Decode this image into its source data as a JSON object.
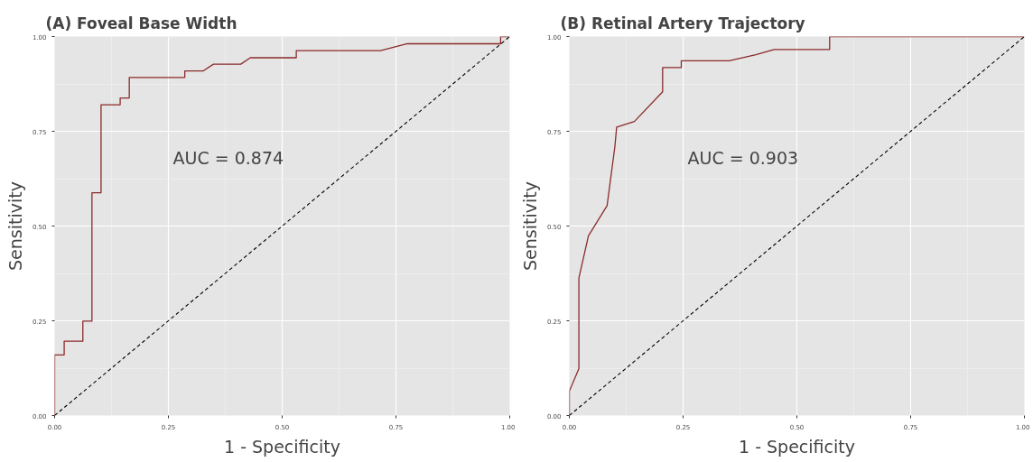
{
  "chart_data": [
    {
      "type": "line",
      "title": "(A)  Foveal Base Width",
      "xlabel": "1 - Specificity",
      "ylabel": "Sensitivity",
      "xlim": [
        0,
        1
      ],
      "ylim": [
        0,
        1
      ],
      "xticks": [
        {
          "value": 0,
          "label": "0.00"
        },
        {
          "value": 0.25,
          "label": "0.25"
        },
        {
          "value": 0.5,
          "label": "0.50"
        },
        {
          "value": 0.75,
          "label": "0.75"
        },
        {
          "value": 1,
          "label": "1.00"
        }
      ],
      "yticks": [
        {
          "value": 0,
          "label": "0.00"
        },
        {
          "value": 0.25,
          "label": "0.25"
        },
        {
          "value": 0.5,
          "label": "0.50"
        },
        {
          "value": 0.75,
          "label": "0.75"
        },
        {
          "value": 1,
          "label": "1.00"
        }
      ],
      "grid": true,
      "annotations": [
        "AUC = 0.874"
      ],
      "series": [
        {
          "color": "#8b2a2a",
          "line_style": "solid",
          "x": [
            0,
            0,
            0.021,
            0.021,
            0.062,
            0.062,
            0.082,
            0.082,
            0.102,
            0.102,
            0.144,
            0.144,
            0.164,
            0.164,
            0.286,
            0.286,
            0.326,
            0.349,
            0.409,
            0.43,
            0.531,
            0.531,
            0.716,
            0.775,
            0.98,
            0.98,
            1.0
          ],
          "values": [
            0,
            0.16,
            0.16,
            0.196,
            0.196,
            0.249,
            0.249,
            0.588,
            0.588,
            0.82,
            0.82,
            0.838,
            0.838,
            0.892,
            0.892,
            0.909,
            0.909,
            0.927,
            0.927,
            0.944,
            0.944,
            0.963,
            0.963,
            0.981,
            0.981,
            1.0,
            1.0
          ]
        },
        {
          "color": "#000000",
          "line_style": "dashed",
          "x": [
            0,
            1
          ],
          "values": [
            0,
            1
          ]
        }
      ]
    },
    {
      "type": "line",
      "title": "(B)  Retinal Artery Trajectory",
      "xlabel": "1 - Specificity",
      "ylabel": "Sensitivity",
      "xlim": [
        0,
        1
      ],
      "ylim": [
        0,
        1
      ],
      "xticks": [
        {
          "value": 0,
          "label": "0.00"
        },
        {
          "value": 0.25,
          "label": "0.25"
        },
        {
          "value": 0.5,
          "label": "0.50"
        },
        {
          "value": 0.75,
          "label": "0.75"
        },
        {
          "value": 1,
          "label": "1.00"
        }
      ],
      "yticks": [
        {
          "value": 0,
          "label": "0.00"
        },
        {
          "value": 0.25,
          "label": "0.25"
        },
        {
          "value": 0.5,
          "label": "0.50"
        },
        {
          "value": 0.75,
          "label": "0.75"
        },
        {
          "value": 1,
          "label": "1.00"
        }
      ],
      "grid": true,
      "annotations": [
        "AUC = 0.903"
      ],
      "series": [
        {
          "color": "#8b2a2a",
          "line_style": "solid",
          "x": [
            0,
            0,
            0.021,
            0.021,
            0.042,
            0.083,
            0.1,
            0.104,
            0.143,
            0.205,
            0.205,
            0.246,
            0.246,
            0.351,
            0.41,
            0.45,
            0.572,
            0.572,
            1.0
          ],
          "values": [
            0,
            0.064,
            0.124,
            0.363,
            0.474,
            0.554,
            0.709,
            0.761,
            0.776,
            0.854,
            0.918,
            0.918,
            0.936,
            0.936,
            0.952,
            0.966,
            0.966,
            1.0,
            1.0
          ]
        },
        {
          "color": "#000000",
          "line_style": "dashed",
          "x": [
            0,
            1
          ],
          "values": [
            0,
            1
          ]
        }
      ]
    }
  ]
}
